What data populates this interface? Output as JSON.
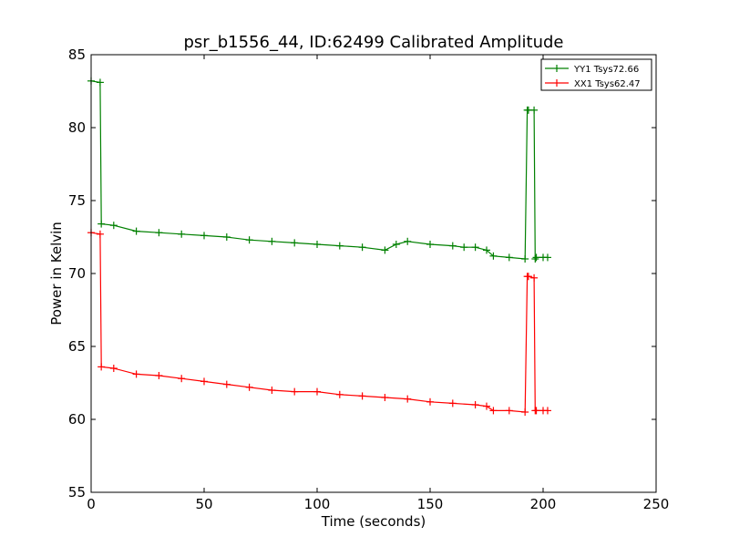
{
  "chart_data": {
    "type": "line",
    "title": "psr_b1556_44, ID:62499 Calibrated Amplitude",
    "xlabel": "Time (seconds)",
    "ylabel": "Power in Kelvin",
    "xlim": [
      0,
      250
    ],
    "ylim": [
      55,
      85
    ],
    "x_ticks": [
      "0",
      "50",
      "100",
      "150",
      "200",
      "250"
    ],
    "y_ticks": [
      "55",
      "60",
      "65",
      "70",
      "75",
      "80",
      "85"
    ],
    "grid": false,
    "legend_position": "top-right",
    "series": [
      {
        "name": "YY1 Tsys72.66",
        "color": "#008000",
        "x": [
          0,
          4,
          4.5,
          10,
          20,
          30,
          40,
          50,
          60,
          70,
          80,
          90,
          100,
          110,
          120,
          130,
          135,
          140,
          150,
          160,
          165,
          170,
          175,
          178,
          185,
          192,
          193,
          193.5,
          196,
          196.5,
          197,
          200,
          202
        ],
        "y": [
          83.2,
          83.1,
          73.4,
          73.3,
          72.9,
          72.8,
          72.7,
          72.6,
          72.5,
          72.3,
          72.2,
          72.1,
          72.0,
          71.9,
          71.8,
          71.6,
          72.0,
          72.2,
          72.0,
          71.9,
          71.8,
          71.8,
          71.6,
          71.2,
          71.1,
          71.0,
          81.2,
          81.2,
          81.2,
          71.0,
          71.1,
          71.1,
          71.1
        ]
      },
      {
        "name": "XX1 Tsys62.47",
        "color": "#ff0000",
        "x": [
          0,
          4,
          4.5,
          10,
          20,
          30,
          40,
          50,
          60,
          70,
          80,
          90,
          100,
          110,
          120,
          130,
          140,
          150,
          160,
          170,
          175,
          178,
          185,
          192,
          193,
          193.5,
          196,
          196.5,
          197,
          200,
          202
        ],
        "y": [
          72.8,
          72.7,
          63.6,
          63.5,
          63.1,
          63.0,
          62.8,
          62.6,
          62.4,
          62.2,
          62.0,
          61.9,
          61.9,
          61.7,
          61.6,
          61.5,
          61.4,
          61.2,
          61.1,
          61.0,
          60.9,
          60.6,
          60.6,
          60.5,
          69.8,
          69.8,
          69.7,
          60.6,
          60.6,
          60.6,
          60.6
        ]
      }
    ]
  }
}
